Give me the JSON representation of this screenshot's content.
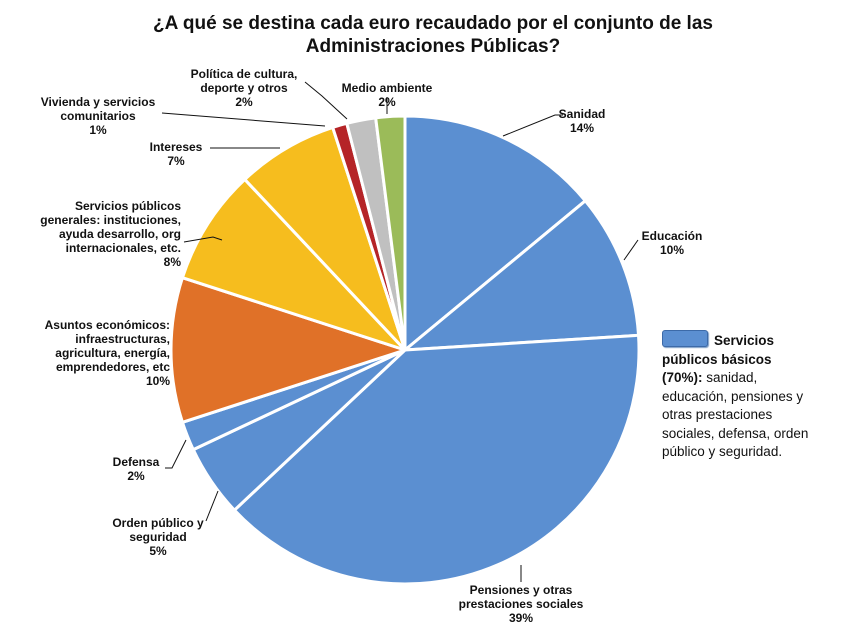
{
  "chart_data": {
    "type": "pie",
    "title_lines": [
      "¿A qué se destina cada euro recaudado por el conjunto de las",
      "Administraciones Públicas?"
    ],
    "slices": [
      {
        "key": "sanidad",
        "label_lines": [
          "Sanidad"
        ],
        "value": 14,
        "value_label": "14%",
        "color": "#5b8fd1"
      },
      {
        "key": "educacion",
        "label_lines": [
          "Educación"
        ],
        "value": 10,
        "value_label": "10%",
        "color": "#5b8fd1"
      },
      {
        "key": "pensiones",
        "label_lines": [
          "Pensiones y otras",
          "prestaciones sociales"
        ],
        "value": 39,
        "value_label": "39%",
        "color": "#5b8fd1"
      },
      {
        "key": "orden-publico",
        "label_lines": [
          "Orden público y",
          "seguridad"
        ],
        "value": 5,
        "value_label": "5%",
        "color": "#5b8fd1"
      },
      {
        "key": "defensa",
        "label_lines": [
          "Defensa"
        ],
        "value": 2,
        "value_label": "2%",
        "color": "#5b8fd1"
      },
      {
        "key": "asuntos-economicos",
        "label_lines": [
          "Asuntos económicos:",
          "infraestructuras,",
          "agricultura, energía,",
          "emprendedores, etc"
        ],
        "value": 10,
        "value_label": "10%",
        "color": "#e07128"
      },
      {
        "key": "servicios-publicos-generales",
        "label_lines": [
          "Servicios públicos",
          "generales: instituciones,",
          "ayuda desarrollo, org",
          "internacionales, etc."
        ],
        "value": 8,
        "value_label": "8%",
        "color": "#f6bd1e"
      },
      {
        "key": "intereses",
        "label_lines": [
          "Intereses"
        ],
        "value": 7,
        "value_label": "7%",
        "color": "#f6bd1e"
      },
      {
        "key": "vivienda",
        "label_lines": [
          "Vivienda y  servicios",
          "comunitarios"
        ],
        "value": 1,
        "value_label": "1%",
        "color": "#b52427"
      },
      {
        "key": "cultura",
        "label_lines": [
          "Política de cultura,",
          "deporte y otros"
        ],
        "value": 2,
        "value_label": "2%",
        "color": "#c0c0c0"
      },
      {
        "key": "medio-ambiente",
        "label_lines": [
          "Medio ambiente"
        ],
        "value": 2,
        "value_label": "2%",
        "color": "#9bbb59"
      }
    ],
    "legend": {
      "swatch_color": "#5b8fd1",
      "label": "Servicios públicos básicos",
      "line1": "Servicios",
      "line2_bold": "públicos básicos",
      "line3_bold": "(70%):",
      "line3_rest": " sanidad,",
      "line4": "educación, pensiones y",
      "line5": "otras prestaciones",
      "line6": "sociales, defensa, orden",
      "line7": "público y seguridad."
    }
  }
}
